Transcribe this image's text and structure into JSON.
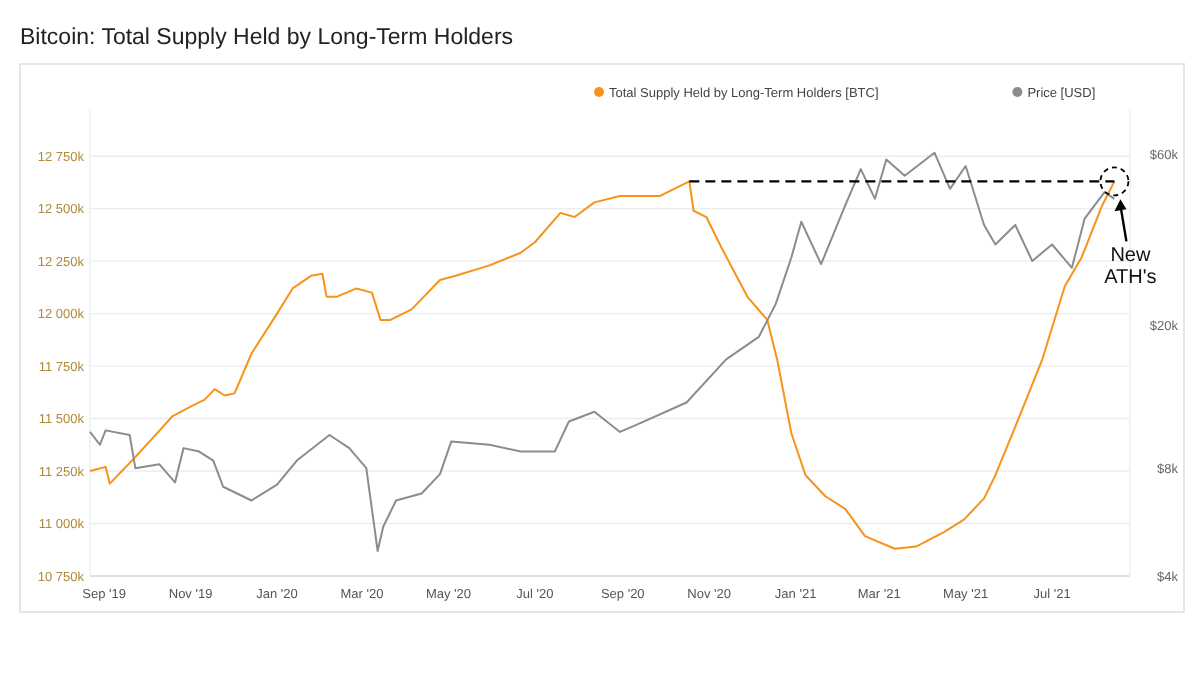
{
  "chart_data": {
    "type": "line",
    "title": "Bitcoin: Total Supply Held by Long-Term Holders",
    "xlim": [
      "2019-08-22",
      "2021-08-25"
    ],
    "xticks": [
      {
        "value": "2019-09-01",
        "label": "Sep '19"
      },
      {
        "value": "2019-11-01",
        "label": "Nov '19"
      },
      {
        "value": "2020-01-01",
        "label": "Jan '20"
      },
      {
        "value": "2020-03-01",
        "label": "Mar '20"
      },
      {
        "value": "2020-05-01",
        "label": "May '20"
      },
      {
        "value": "2020-07-01",
        "label": "Jul '20"
      },
      {
        "value": "2020-09-01",
        "label": "Sep '20"
      },
      {
        "value": "2020-11-01",
        "label": "Nov '20"
      },
      {
        "value": "2021-01-01",
        "label": "Jan '21"
      },
      {
        "value": "2021-03-01",
        "label": "Mar '21"
      },
      {
        "value": "2021-05-01",
        "label": "May '21"
      },
      {
        "value": "2021-07-01",
        "label": "Jul '21"
      }
    ],
    "ylim": [
      10750,
      12970
    ],
    "yticks": [
      {
        "value": 10750,
        "label": "10 750k"
      },
      {
        "value": 11000,
        "label": "11 000k"
      },
      {
        "value": 11250,
        "label": "11 250k"
      },
      {
        "value": 11500,
        "label": "11 500k"
      },
      {
        "value": 11750,
        "label": "11 750k"
      },
      {
        "value": 12000,
        "label": "12 000k"
      },
      {
        "value": 12250,
        "label": "12 250k"
      },
      {
        "value": 12500,
        "label": "12 500k"
      },
      {
        "value": 12750,
        "label": "12 750k"
      }
    ],
    "y2lim": [
      4000,
      80000
    ],
    "y2ticks": [
      {
        "value": 4000,
        "label": "$4k"
      },
      {
        "value": 8000,
        "label": "$8k"
      },
      {
        "value": 20000,
        "label": "$20k"
      },
      {
        "value": 60000,
        "label": "$60k"
      }
    ],
    "log": "y2",
    "grid": "y",
    "legend": "top right",
    "series": [
      {
        "name": "Total Supply Held by Long-Term Holders [BTC]",
        "color": "#f7931a",
        "x": [
          "2019-08-22",
          "2019-09-02",
          "2019-09-05",
          "2019-09-22",
          "2019-10-07",
          "2019-10-19",
          "2019-11-02",
          "2019-11-11",
          "2019-11-18",
          "2019-11-25",
          "2019-12-02",
          "2019-12-14",
          "2020-01-01",
          "2020-01-12",
          "2020-01-25",
          "2020-02-02",
          "2020-02-05",
          "2020-02-12",
          "2020-02-26",
          "2020-03-08",
          "2020-03-14",
          "2020-03-21",
          "2020-04-05",
          "2020-04-25",
          "2020-05-06",
          "2020-05-30",
          "2020-06-21",
          "2020-07-01",
          "2020-07-19",
          "2020-07-29",
          "2020-08-12",
          "2020-08-30",
          "2020-09-27",
          "2020-10-18",
          "2020-10-21",
          "2020-10-30",
          "2020-11-10",
          "2020-11-28",
          "2020-12-12",
          "2020-12-19",
          "2020-12-29",
          "2021-01-08",
          "2021-01-22",
          "2021-02-05",
          "2021-02-19",
          "2021-03-12",
          "2021-03-27",
          "2021-04-16",
          "2021-04-30",
          "2021-05-14",
          "2021-05-22",
          "2021-06-05",
          "2021-06-24",
          "2021-07-10",
          "2021-07-22",
          "2021-08-05",
          "2021-08-14"
        ],
        "values": [
          11250,
          11270,
          11190,
          11310,
          11420,
          11510,
          11560,
          11590,
          11640,
          11610,
          11620,
          11810,
          12000,
          12120,
          12180,
          12190,
          12080,
          12080,
          12120,
          12100,
          11970,
          11970,
          12020,
          12160,
          12180,
          12230,
          12290,
          12340,
          12480,
          12460,
          12530,
          12560,
          12560,
          12630,
          12490,
          12460,
          12310,
          12080,
          11970,
          11780,
          11430,
          11230,
          11130,
          11070,
          10940,
          10880,
          10890,
          10960,
          11020,
          11120,
          11230,
          11460,
          11780,
          12130,
          12270,
          12510,
          12630
        ]
      },
      {
        "name": "Price [USD]",
        "color": "#8c8c8c",
        "axis": "y2",
        "x": [
          "2019-08-22",
          "2019-08-29",
          "2019-09-02",
          "2019-09-19",
          "2019-09-23",
          "2019-10-10",
          "2019-10-21",
          "2019-10-27",
          "2019-11-07",
          "2019-11-17",
          "2019-11-24",
          "2019-12-14",
          "2020-01-01",
          "2020-01-15",
          "2020-02-07",
          "2020-02-21",
          "2020-03-04",
          "2020-03-12",
          "2020-03-16",
          "2020-03-25",
          "2020-04-12",
          "2020-04-25",
          "2020-05-03",
          "2020-05-30",
          "2020-06-21",
          "2020-07-15",
          "2020-07-25",
          "2020-08-12",
          "2020-08-30",
          "2020-09-09",
          "2020-10-16",
          "2020-11-13",
          "2020-12-06",
          "2020-12-18",
          "2020-12-29",
          "2021-01-05",
          "2021-01-19",
          "2021-02-05",
          "2021-02-16",
          "2021-02-26",
          "2021-03-06",
          "2021-03-19",
          "2021-04-09",
          "2021-04-20",
          "2021-05-01",
          "2021-05-14",
          "2021-05-22",
          "2021-06-05",
          "2021-06-17",
          "2021-07-01",
          "2021-07-15",
          "2021-07-24",
          "2021-08-07",
          "2021-08-14"
        ],
        "values": [
          10100,
          9300,
          10200,
          9900,
          8000,
          8200,
          7300,
          9100,
          8900,
          8400,
          7100,
          6500,
          7200,
          8400,
          9900,
          9100,
          8000,
          4700,
          5500,
          6500,
          6800,
          7700,
          9500,
          9300,
          8900,
          8900,
          10800,
          11500,
          10100,
          10500,
          12200,
          16100,
          18600,
          23000,
          31000,
          39000,
          29700,
          43300,
          54700,
          45200,
          58200,
          52400,
          60800,
          48200,
          55800,
          38200,
          33700,
          38200,
          30300,
          33700,
          29000,
          39800,
          47200,
          45200
        ]
      },
      {
        "type": "line",
        "color": "#000000",
        "line_style": "dashed",
        "x": [
          "2020-10-18",
          "2021-08-14"
        ],
        "values": [
          12630,
          12630
        ]
      }
    ],
    "annotations": [
      "New ATH's"
    ]
  }
}
